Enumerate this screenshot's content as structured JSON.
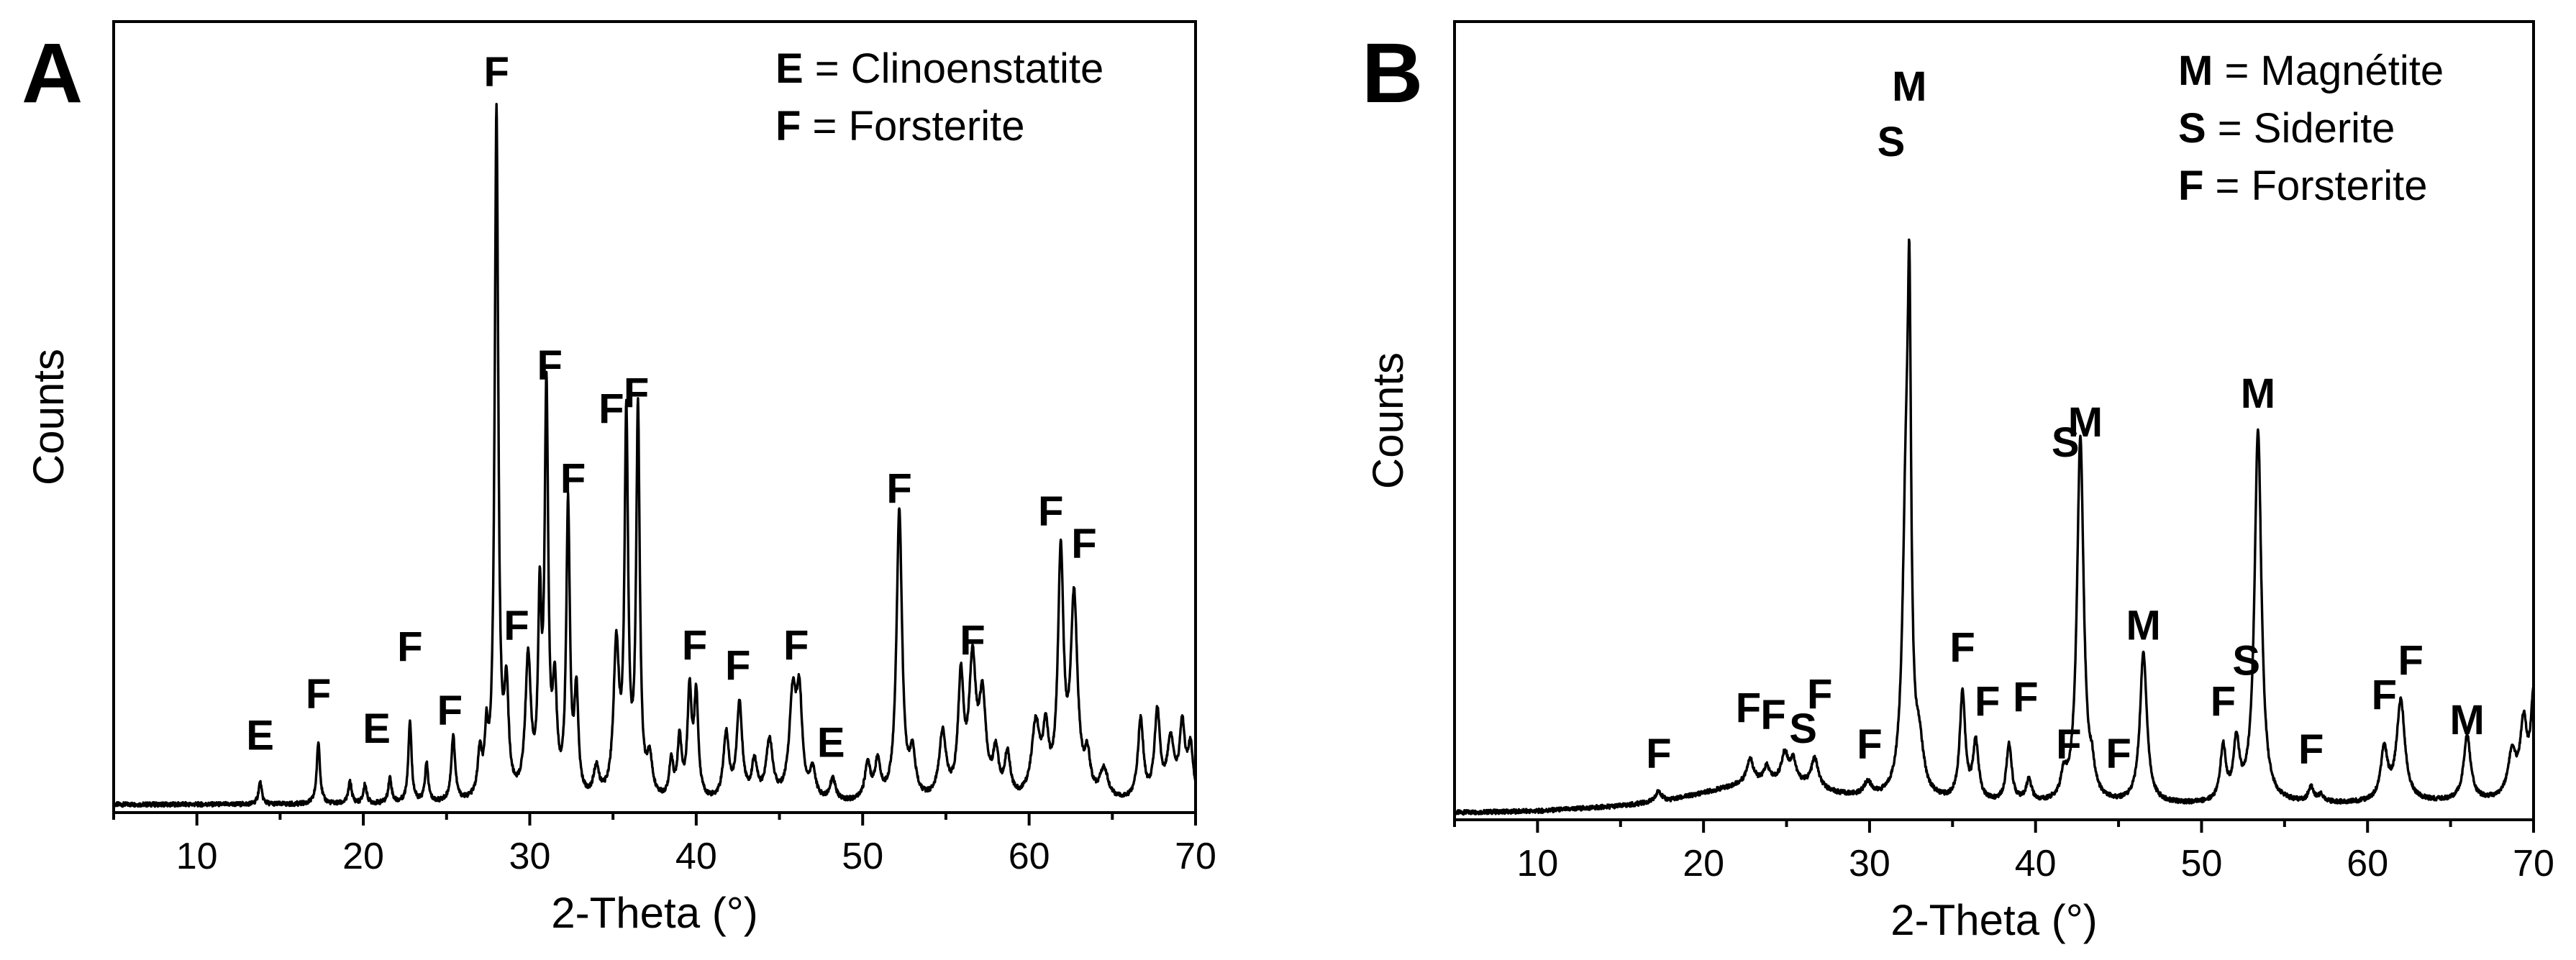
{
  "chart_data": [
    {
      "type": "line",
      "panel_label": "A",
      "xlabel": "2-Theta (°)",
      "ylabel": "Counts",
      "xlim": [
        5,
        70
      ],
      "ylim": [
        0,
        100
      ],
      "xticks": [
        "10",
        "20",
        "30",
        "40",
        "50",
        "60",
        "70"
      ],
      "xtick_values": [
        10,
        20,
        30,
        40,
        50,
        60,
        70
      ],
      "legend": [
        {
          "symbol": "E",
          "text": " = Clinoenstatite"
        },
        {
          "symbol": "F",
          "text": " = Forsterite"
        }
      ],
      "baseline": 0.9,
      "peaks": [
        [
          13.8,
          3.0,
          0.12
        ],
        [
          17.3,
          8.5,
          0.12
        ],
        [
          19.2,
          3.0,
          0.12
        ],
        [
          20.1,
          2.6,
          0.12
        ],
        [
          21.6,
          3.5,
          0.12
        ],
        [
          22.8,
          11.2,
          0.12
        ],
        [
          23.8,
          5.3,
          0.12
        ],
        [
          25.4,
          9.0,
          0.14
        ],
        [
          27.0,
          6.0,
          0.15
        ],
        [
          27.4,
          7.5,
          0.12
        ],
        [
          28.0,
          95.0,
          0.13
        ],
        [
          28.6,
          14.0,
          0.15
        ],
        [
          29.9,
          19.0,
          0.2
        ],
        [
          30.6,
          25.0,
          0.12
        ],
        [
          31.0,
          55.0,
          0.13
        ],
        [
          31.5,
          14.0,
          0.15
        ],
        [
          32.3,
          40.0,
          0.13
        ],
        [
          32.8,
          14.0,
          0.14
        ],
        [
          34.0,
          4.0,
          0.2
        ],
        [
          35.2,
          20.5,
          0.2
        ],
        [
          35.8,
          51.5,
          0.13
        ],
        [
          36.5,
          53.0,
          0.13
        ],
        [
          37.2,
          5.0,
          0.2
        ],
        [
          38.5,
          5.0,
          0.15
        ],
        [
          39.0,
          8.0,
          0.15
        ],
        [
          39.6,
          14.5,
          0.15
        ],
        [
          40.0,
          14.0,
          0.15
        ],
        [
          41.8,
          9.0,
          0.2
        ],
        [
          42.6,
          13.0,
          0.2
        ],
        [
          43.5,
          5.0,
          0.2
        ],
        [
          44.4,
          8.0,
          0.25
        ],
        [
          45.8,
          14.0,
          0.25
        ],
        [
          46.2,
          13.0,
          0.2
        ],
        [
          47.0,
          4.0,
          0.2
        ],
        [
          48.2,
          3.0,
          0.2
        ],
        [
          50.3,
          5.0,
          0.2
        ],
        [
          50.9,
          5.0,
          0.2
        ],
        [
          52.2,
          40.0,
          0.2
        ],
        [
          53.0,
          6.0,
          0.2
        ],
        [
          54.8,
          9.0,
          0.25
        ],
        [
          55.9,
          16.0,
          0.2
        ],
        [
          56.6,
          18.0,
          0.25
        ],
        [
          57.2,
          13.0,
          0.25
        ],
        [
          58.0,
          6.0,
          0.2
        ],
        [
          58.7,
          6.0,
          0.2
        ],
        [
          60.4,
          10.0,
          0.3
        ],
        [
          61.0,
          8.0,
          0.2
        ],
        [
          61.9,
          33.0,
          0.2
        ],
        [
          62.7,
          27.0,
          0.25
        ],
        [
          63.5,
          5.0,
          0.2
        ],
        [
          64.5,
          4.0,
          0.3
        ],
        [
          66.7,
          11.0,
          0.2
        ],
        [
          67.7,
          12.0,
          0.2
        ],
        [
          68.5,
          8.0,
          0.25
        ],
        [
          69.2,
          10.0,
          0.2
        ],
        [
          69.7,
          7.0,
          0.2
        ]
      ],
      "annotations": [
        {
          "text": "E",
          "x": 13.8,
          "y": 8.5
        },
        {
          "text": "F",
          "x": 17.3,
          "y": 14.2
        },
        {
          "text": "E",
          "x": 20.8,
          "y": 9.4
        },
        {
          "text": "F",
          "x": 22.8,
          "y": 20.7
        },
        {
          "text": "F",
          "x": 25.2,
          "y": 11.9
        },
        {
          "text": "F",
          "x": 28.0,
          "y": 100.0
        },
        {
          "text": "F",
          "x": 29.2,
          "y": 23.6
        },
        {
          "text": "F",
          "x": 31.2,
          "y": 59.5
        },
        {
          "text": "F",
          "x": 34.9,
          "y": 53.5
        },
        {
          "text": "F",
          "x": 36.4,
          "y": 55.7
        },
        {
          "text": "F",
          "x": 32.6,
          "y": 43.9
        },
        {
          "text": "F",
          "x": 39.9,
          "y": 20.9
        },
        {
          "text": "F",
          "x": 42.5,
          "y": 18.1
        },
        {
          "text": "F",
          "x": 46.0,
          "y": 20.9
        },
        {
          "text": "E",
          "x": 48.1,
          "y": 7.5
        },
        {
          "text": "F",
          "x": 52.2,
          "y": 42.5
        },
        {
          "text": "F",
          "x": 56.6,
          "y": 21.6
        },
        {
          "text": "F",
          "x": 61.3,
          "y": 39.4
        },
        {
          "text": "F",
          "x": 63.3,
          "y": 34.9
        }
      ]
    },
    {
      "type": "line",
      "panel_label": "B",
      "xlabel": "2-Theta (°)",
      "ylabel": "Counts",
      "xlim": [
        5,
        70
      ],
      "ylim": [
        0,
        100
      ],
      "xticks": [
        "10",
        "20",
        "30",
        "40",
        "50",
        "60",
        "70"
      ],
      "xtick_values": [
        10,
        20,
        30,
        40,
        50,
        60,
        70
      ],
      "legend": [
        {
          "symbol": "M",
          "text": " = Magnétite"
        },
        {
          "symbol": "S",
          "text": " = Siderite"
        },
        {
          "symbol": "F",
          "text": " = Forsterite"
        }
      ],
      "background": [
        [
          5,
          0.8
        ],
        [
          10,
          1.0
        ],
        [
          15,
          1.7
        ],
        [
          18,
          2.5
        ],
        [
          20,
          3.5
        ],
        [
          22,
          4.5
        ],
        [
          24,
          5.0
        ],
        [
          26,
          4.6
        ],
        [
          28,
          3.3
        ],
        [
          30,
          2.5
        ],
        [
          35,
          2.0
        ],
        [
          40,
          1.8
        ],
        [
          50,
          1.8
        ],
        [
          60,
          2.0
        ],
        [
          70,
          2.5
        ]
      ],
      "peaks": [
        [
          17.3,
          1.5,
          0.2
        ],
        [
          22.8,
          3.5,
          0.25
        ],
        [
          23.8,
          2.0,
          0.2
        ],
        [
          24.9,
          4.0,
          0.25
        ],
        [
          25.4,
          3.0,
          0.2
        ],
        [
          26.7,
          4.0,
          0.25
        ],
        [
          29.9,
          2.0,
          0.3
        ],
        [
          32.2,
          40.0,
          0.25
        ],
        [
          32.4,
          52.0,
          0.12
        ],
        [
          33.0,
          6.0,
          0.3
        ],
        [
          35.6,
          15.0,
          0.2
        ],
        [
          36.4,
          8.0,
          0.2
        ],
        [
          38.4,
          8.0,
          0.2
        ],
        [
          39.6,
          3.0,
          0.2
        ],
        [
          41.7,
          3.0,
          0.2
        ],
        [
          42.7,
          51.0,
          0.24
        ],
        [
          43.4,
          3.0,
          0.2
        ],
        [
          46.5,
          21.0,
          0.25
        ],
        [
          51.3,
          7.5,
          0.2
        ],
        [
          52.1,
          8.0,
          0.2
        ],
        [
          53.4,
          52.0,
          0.25
        ],
        [
          56.6,
          2.0,
          0.2
        ],
        [
          57.2,
          1.0,
          0.2
        ],
        [
          61.0,
          7.0,
          0.25
        ],
        [
          62.0,
          14.0,
          0.3
        ],
        [
          66.0,
          9.0,
          0.25
        ],
        [
          68.7,
          6.0,
          0.3
        ],
        [
          69.4,
          10.0,
          0.25
        ],
        [
          70.0,
          14.0,
          0.2
        ]
      ],
      "annotations": [
        {
          "text": "M",
          "x": 32.4,
          "y": 100.0
        },
        {
          "text": "S",
          "x": 31.3,
          "y": 92.3
        },
        {
          "text": "S",
          "x": 41.8,
          "y": 50.4
        },
        {
          "text": "M",
          "x": 43.0,
          "y": 53.2
        },
        {
          "text": "M",
          "x": 46.5,
          "y": 24.9
        },
        {
          "text": "M",
          "x": 53.4,
          "y": 57.2
        },
        {
          "text": "S",
          "x": 52.7,
          "y": 20.0
        },
        {
          "text": "M",
          "x": 66.0,
          "y": 11.7
        },
        {
          "text": "F",
          "x": 17.3,
          "y": 7.0
        },
        {
          "text": "F",
          "x": 22.7,
          "y": 13.4
        },
        {
          "text": "F",
          "x": 24.2,
          "y": 12.4
        },
        {
          "text": "S",
          "x": 26.0,
          "y": 10.5
        },
        {
          "text": "F",
          "x": 27.0,
          "y": 15.3
        },
        {
          "text": "F",
          "x": 30.0,
          "y": 8.3
        },
        {
          "text": "F",
          "x": 35.6,
          "y": 21.8
        },
        {
          "text": "F",
          "x": 37.1,
          "y": 14.3
        },
        {
          "text": "F",
          "x": 39.4,
          "y": 14.9
        },
        {
          "text": "F",
          "x": 42.0,
          "y": 8.3
        },
        {
          "text": "F",
          "x": 45.0,
          "y": 7.0
        },
        {
          "text": "F",
          "x": 51.3,
          "y": 14.3
        },
        {
          "text": "F",
          "x": 56.6,
          "y": 7.6
        },
        {
          "text": "F",
          "x": 61.0,
          "y": 15.2
        },
        {
          "text": "F",
          "x": 62.6,
          "y": 20.0
        }
      ]
    }
  ]
}
